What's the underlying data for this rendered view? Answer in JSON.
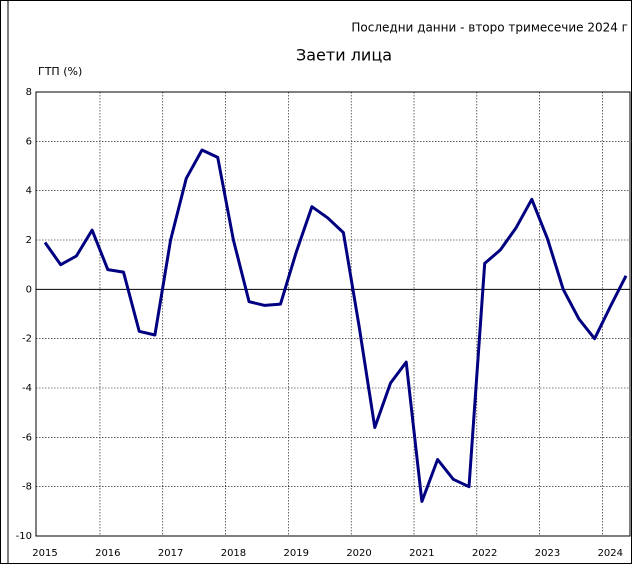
{
  "chart_data": {
    "type": "line",
    "title": "Заети лица",
    "note": "Последни данни - второ тримесечие 2024 г",
    "y_label": "ГТП (%)",
    "categories": [
      "2015",
      null,
      null,
      null,
      "2016",
      null,
      null,
      null,
      "2017",
      null,
      null,
      null,
      "2018",
      null,
      null,
      null,
      "2019",
      null,
      null,
      null,
      "2020",
      null,
      null,
      null,
      "2021",
      null,
      null,
      null,
      "2022",
      null,
      null,
      null,
      "2023",
      null,
      null,
      null,
      "2024",
      null
    ],
    "values": [
      1.9,
      1.0,
      1.35,
      2.4,
      0.8,
      0.7,
      -1.7,
      -1.85,
      2.0,
      4.5,
      5.65,
      5.35,
      2.0,
      -0.5,
      -0.65,
      -0.6,
      1.5,
      3.35,
      2.9,
      2.3,
      -1.5,
      -5.6,
      -3.8,
      -2.95,
      -8.6,
      -6.9,
      -7.7,
      -8.0,
      1.05,
      1.6,
      2.5,
      3.65,
      2.05,
      0.0,
      -1.2,
      -2.0,
      -0.7,
      0.55
    ],
    "color": "#000080",
    "ylim": [
      -10,
      8
    ],
    "yticks": [
      -10,
      -8,
      -6,
      -4,
      -2,
      0,
      2,
      4,
      6,
      8
    ],
    "grid": true
  }
}
